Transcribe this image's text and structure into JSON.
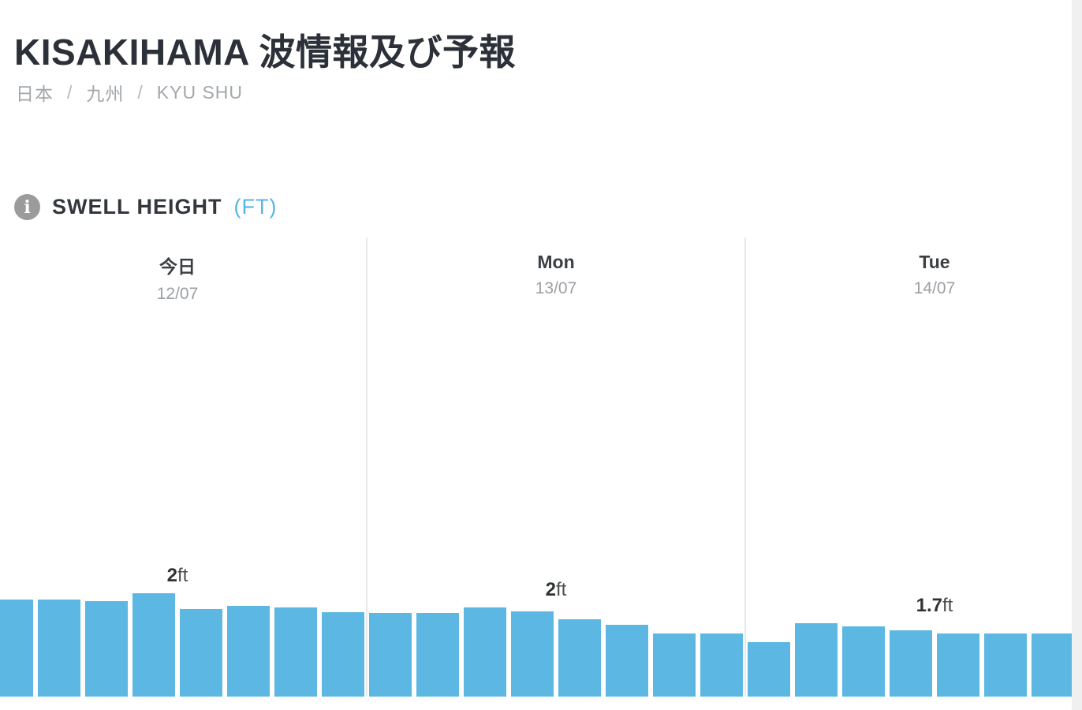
{
  "page_title": "KISAKIHAMA 波情報及び予報",
  "breadcrumb": {
    "separator": "/",
    "items": [
      {
        "label": "日本"
      },
      {
        "label": "九州"
      },
      {
        "label": "KYU SHU"
      }
    ]
  },
  "section": {
    "heading": "SWELL HEIGHT",
    "unit_label": "(FT)"
  },
  "colors": {
    "bar": "#5cb8e2",
    "accent_blue": "#55b5e8",
    "title_text": "#2c3038",
    "muted_text": "#9ba0a5",
    "divider": "#e9e9e9",
    "right_gutter": "#f0f0f0",
    "info_icon_bg": "#9b9b9b"
  },
  "chart_data": {
    "type": "bar",
    "title": "SWELL HEIGHT (FT)",
    "unit": "ft",
    "interval_hours": 3,
    "gridlines": false,
    "legend": "none",
    "y_axis_visible": false,
    "approx_value_range_ft": [
      1.5,
      2.0
    ],
    "peak_labels_shown": [
      "2ft",
      "2ft",
      "1.7ft"
    ],
    "days": [
      {
        "name": "今日",
        "date": "12/07",
        "peak_label_value": "2",
        "peak_label_unit": "ft",
        "values_ft": [
          1.94,
          1.94,
          1.92,
          2.0,
          1.84,
          1.87,
          1.86,
          1.81
        ]
      },
      {
        "name": "Mon",
        "date": "13/07",
        "peak_label_value": "2",
        "peak_label_unit": "ft",
        "values_ft": [
          1.8,
          1.8,
          1.86,
          1.82,
          1.74,
          1.68,
          1.6,
          1.6
        ]
      },
      {
        "name": "Tue",
        "date": "14/07",
        "peak_label_value": "1.7",
        "peak_label_unit": "ft",
        "values_ft": [
          1.51,
          1.7,
          1.67,
          1.63,
          1.6,
          1.6,
          1.6
        ]
      }
    ]
  }
}
